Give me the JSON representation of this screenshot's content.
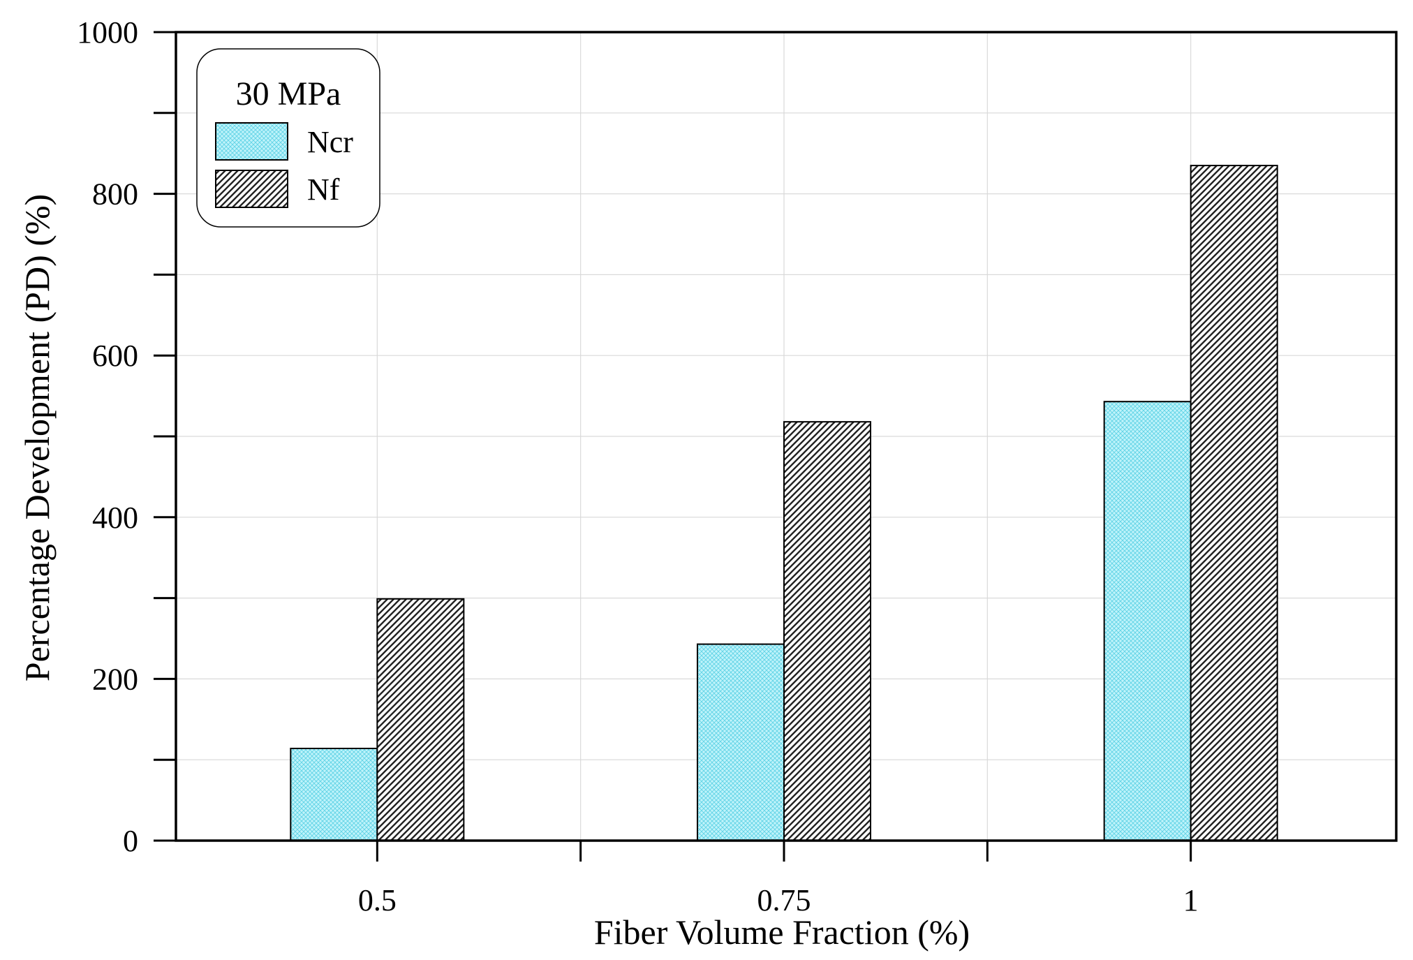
{
  "chart_data": {
    "type": "bar",
    "title": "",
    "xlabel": "Fiber Volume Fraction (%)",
    "ylabel": "Percentage Development (PD) (%)",
    "categories": [
      "0.5",
      "0.75",
      "1"
    ],
    "series": [
      {
        "name": "Ncr",
        "values": [
          114,
          243,
          543
        ],
        "color": "#a8eef8",
        "pattern": "crosshatch"
      },
      {
        "name": "Nf",
        "values": [
          299,
          518,
          835
        ],
        "color": "#555555",
        "pattern": "diagonal"
      }
    ],
    "ylim": [
      0,
      1000
    ],
    "yticks": [
      0,
      200,
      400,
      600,
      800,
      1000
    ],
    "grid": true,
    "legend": {
      "title": "30 MPa",
      "position": "top-left"
    }
  }
}
